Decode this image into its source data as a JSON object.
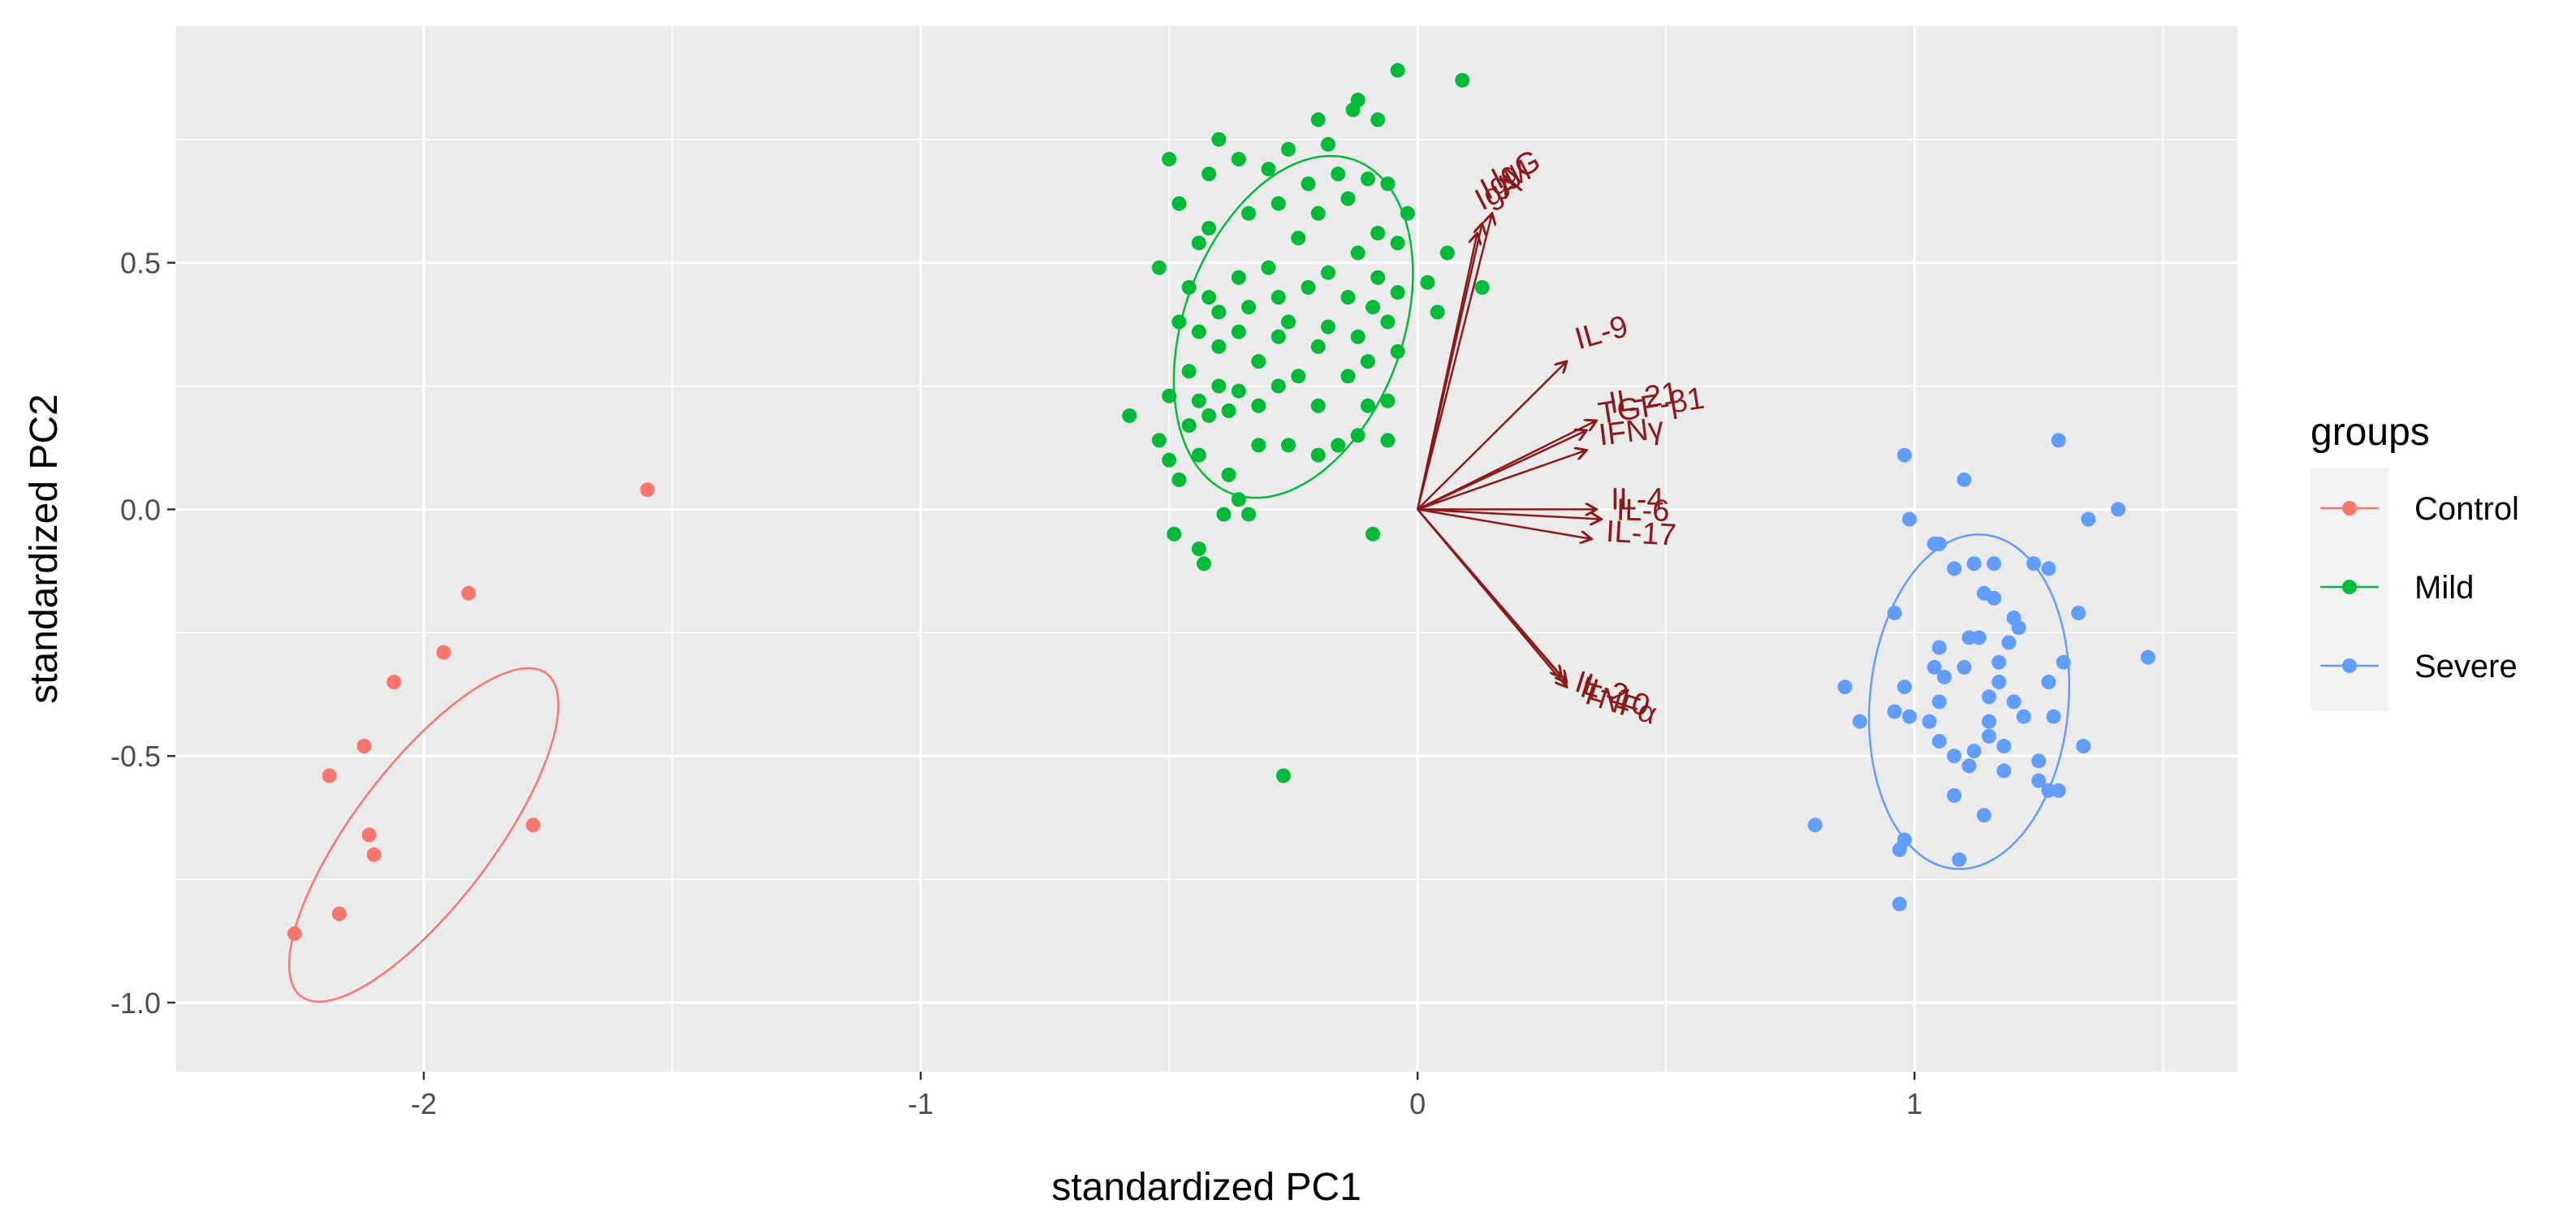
{
  "chart_data": {
    "type": "scatter",
    "xlabel": "standardized PC1",
    "ylabel": "standardized PC2",
    "xlim": [
      -2.5,
      1.65
    ],
    "ylim": [
      -1.14,
      0.98
    ],
    "x_ticks": [
      -2,
      -1,
      0,
      1
    ],
    "x_tick_labels": [
      "-2",
      "-1",
      "0",
      "1"
    ],
    "y_ticks": [
      -1.0,
      -0.5,
      0.0,
      0.5
    ],
    "y_tick_labels": [
      "-1.0",
      "-0.5",
      "0.0",
      "0.5"
    ],
    "grid": true,
    "legend": {
      "title": "groups",
      "position": "right",
      "entries": [
        "Control",
        "Mild",
        "Severe"
      ]
    },
    "colors": {
      "Control": "#F8766D",
      "Mild": "#00BA38",
      "Severe": "#619CFF",
      "arrows": "#8B1A1A",
      "panel": "#EBEBEB",
      "grid": "#FFFFFF"
    },
    "series": [
      {
        "name": "Control",
        "points": [
          [
            -1.55,
            0.04
          ],
          [
            -1.91,
            -0.17
          ],
          [
            -1.96,
            -0.29
          ],
          [
            -2.06,
            -0.35
          ],
          [
            -2.12,
            -0.48
          ],
          [
            -2.19,
            -0.54
          ],
          [
            -2.11,
            -0.66
          ],
          [
            -2.1,
            -0.7
          ],
          [
            -1.78,
            -0.64
          ],
          [
            -2.17,
            -0.82
          ],
          [
            -2.26,
            -0.86
          ]
        ],
        "ellipse": {
          "cx": -2.0,
          "cy": -0.66,
          "rx": 0.41,
          "ry": 0.14,
          "angle_deg": 53
        }
      },
      {
        "name": "Mild",
        "points": [
          [
            -0.04,
            0.89
          ],
          [
            0.09,
            0.87
          ],
          [
            -0.12,
            0.83
          ],
          [
            -0.08,
            0.79
          ],
          [
            -0.13,
            0.81
          ],
          [
            -0.2,
            0.79
          ],
          [
            -0.4,
            0.75
          ],
          [
            -0.18,
            0.74
          ],
          [
            -0.36,
            0.71
          ],
          [
            -0.26,
            0.73
          ],
          [
            -0.5,
            0.71
          ],
          [
            -0.3,
            0.69
          ],
          [
            -0.16,
            0.68
          ],
          [
            -0.42,
            0.68
          ],
          [
            -0.22,
            0.66
          ],
          [
            -0.1,
            0.67
          ],
          [
            -0.06,
            0.66
          ],
          [
            -0.48,
            0.62
          ],
          [
            -0.28,
            0.62
          ],
          [
            -0.14,
            0.63
          ],
          [
            -0.34,
            0.6
          ],
          [
            -0.2,
            0.6
          ],
          [
            -0.02,
            0.6
          ],
          [
            -0.42,
            0.57
          ],
          [
            -0.08,
            0.56
          ],
          [
            -0.24,
            0.55
          ],
          [
            -0.44,
            0.54
          ],
          [
            -0.04,
            0.54
          ],
          [
            -0.12,
            0.52
          ],
          [
            0.06,
            0.52
          ],
          [
            -0.52,
            0.49
          ],
          [
            -0.3,
            0.49
          ],
          [
            -0.18,
            0.48
          ],
          [
            -0.08,
            0.47
          ],
          [
            -0.36,
            0.47
          ],
          [
            0.02,
            0.46
          ],
          [
            -0.46,
            0.45
          ],
          [
            -0.22,
            0.45
          ],
          [
            -0.04,
            0.44
          ],
          [
            0.13,
            0.45
          ],
          [
            -0.42,
            0.43
          ],
          [
            -0.28,
            0.43
          ],
          [
            -0.14,
            0.43
          ],
          [
            -0.34,
            0.41
          ],
          [
            -0.09,
            0.41
          ],
          [
            -0.4,
            0.4
          ],
          [
            0.04,
            0.4
          ],
          [
            -0.48,
            0.38
          ],
          [
            -0.26,
            0.38
          ],
          [
            -0.18,
            0.37
          ],
          [
            -0.06,
            0.38
          ],
          [
            -0.36,
            0.36
          ],
          [
            -0.44,
            0.36
          ],
          [
            -0.28,
            0.35
          ],
          [
            -0.12,
            0.35
          ],
          [
            -0.4,
            0.33
          ],
          [
            -0.2,
            0.33
          ],
          [
            -0.04,
            0.32
          ],
          [
            -0.32,
            0.3
          ],
          [
            -0.1,
            0.3
          ],
          [
            -0.46,
            0.28
          ],
          [
            -0.24,
            0.27
          ],
          [
            -0.14,
            0.27
          ],
          [
            -0.4,
            0.25
          ],
          [
            -0.36,
            0.24
          ],
          [
            -0.28,
            0.25
          ],
          [
            -0.5,
            0.23
          ],
          [
            -0.06,
            0.22
          ],
          [
            -0.44,
            0.22
          ],
          [
            -0.32,
            0.21
          ],
          [
            -0.2,
            0.21
          ],
          [
            -0.1,
            0.21
          ],
          [
            -0.42,
            0.19
          ],
          [
            -0.38,
            0.2
          ],
          [
            -0.58,
            0.19
          ],
          [
            -0.46,
            0.17
          ],
          [
            -0.12,
            0.15
          ],
          [
            -0.16,
            0.13
          ],
          [
            -0.06,
            0.14
          ],
          [
            -0.44,
            0.11
          ],
          [
            -0.26,
            0.13
          ],
          [
            -0.32,
            0.13
          ],
          [
            -0.52,
            0.14
          ],
          [
            -0.2,
            0.11
          ],
          [
            -0.5,
            0.1
          ],
          [
            -0.38,
            0.07
          ],
          [
            -0.36,
            0.02
          ],
          [
            -0.34,
            -0.01
          ],
          [
            -0.39,
            -0.01
          ],
          [
            -0.48,
            0.06
          ],
          [
            -0.44,
            -0.08
          ],
          [
            -0.49,
            -0.05
          ],
          [
            -0.43,
            -0.11
          ],
          [
            -0.09,
            -0.05
          ],
          [
            -0.27,
            -0.54
          ]
        ],
        "ellipse": {
          "cx": -0.25,
          "cy": 0.37,
          "rx": 0.36,
          "ry": 0.22,
          "angle_deg": 70
        }
      },
      {
        "name": "Severe",
        "points": [
          [
            1.29,
            0.14
          ],
          [
            0.98,
            0.11
          ],
          [
            1.1,
            0.06
          ],
          [
            1.41,
            0.0
          ],
          [
            1.35,
            -0.02
          ],
          [
            0.99,
            -0.02
          ],
          [
            1.04,
            -0.07
          ],
          [
            1.05,
            -0.07
          ],
          [
            1.12,
            -0.11
          ],
          [
            1.16,
            -0.11
          ],
          [
            1.24,
            -0.11
          ],
          [
            1.27,
            -0.12
          ],
          [
            1.08,
            -0.12
          ],
          [
            1.14,
            -0.17
          ],
          [
            1.16,
            -0.18
          ],
          [
            0.96,
            -0.21
          ],
          [
            1.33,
            -0.21
          ],
          [
            1.2,
            -0.22
          ],
          [
            1.21,
            -0.24
          ],
          [
            1.13,
            -0.26
          ],
          [
            1.11,
            -0.26
          ],
          [
            1.19,
            -0.27
          ],
          [
            1.05,
            -0.28
          ],
          [
            1.47,
            -0.3
          ],
          [
            1.17,
            -0.31
          ],
          [
            1.04,
            -0.32
          ],
          [
            1.1,
            -0.32
          ],
          [
            1.3,
            -0.31
          ],
          [
            1.06,
            -0.34
          ],
          [
            1.17,
            -0.35
          ],
          [
            1.27,
            -0.35
          ],
          [
            0.98,
            -0.36
          ],
          [
            0.86,
            -0.36
          ],
          [
            1.15,
            -0.38
          ],
          [
            1.05,
            -0.39
          ],
          [
            1.2,
            -0.39
          ],
          [
            0.96,
            -0.41
          ],
          [
            0.99,
            -0.42
          ],
          [
            1.03,
            -0.43
          ],
          [
            1.22,
            -0.42
          ],
          [
            1.28,
            -0.42
          ],
          [
            0.89,
            -0.43
          ],
          [
            1.15,
            -0.43
          ],
          [
            1.15,
            -0.46
          ],
          [
            1.05,
            -0.47
          ],
          [
            1.18,
            -0.48
          ],
          [
            1.12,
            -0.49
          ],
          [
            1.34,
            -0.48
          ],
          [
            1.08,
            -0.5
          ],
          [
            1.25,
            -0.51
          ],
          [
            1.11,
            -0.52
          ],
          [
            1.18,
            -0.53
          ],
          [
            1.25,
            -0.55
          ],
          [
            1.29,
            -0.57
          ],
          [
            1.27,
            -0.57
          ],
          [
            1.08,
            -0.58
          ],
          [
            1.14,
            -0.62
          ],
          [
            0.8,
            -0.64
          ],
          [
            0.98,
            -0.67
          ],
          [
            0.97,
            -0.69
          ],
          [
            1.09,
            -0.71
          ],
          [
            0.97,
            -0.8
          ]
        ],
        "ellipse": {
          "cx": 1.11,
          "cy": -0.39,
          "rx": 0.34,
          "ry": 0.2,
          "angle_deg": 85
        }
      }
    ],
    "loadings": [
      {
        "label": "IgG",
        "x": 0.15,
        "y": 0.6
      },
      {
        "label": "IgM",
        "x": 0.13,
        "y": 0.58
      },
      {
        "label": "IgA",
        "x": 0.12,
        "y": 0.56
      },
      {
        "label": "IL-9",
        "x": 0.3,
        "y": 0.3
      },
      {
        "label": "TGF-β1",
        "x": 0.34,
        "y": 0.16
      },
      {
        "label": "IL-21",
        "x": 0.36,
        "y": 0.18
      },
      {
        "label": "IFNγ",
        "x": 0.34,
        "y": 0.12
      },
      {
        "label": "IL-4",
        "x": 0.36,
        "y": 0.0
      },
      {
        "label": "IL-6",
        "x": 0.37,
        "y": -0.02
      },
      {
        "label": "IL-17",
        "x": 0.35,
        "y": -0.06
      },
      {
        "label": "IL-10",
        "x": 0.3,
        "y": -0.35
      },
      {
        "label": "TNFα",
        "x": 0.3,
        "y": -0.36
      },
      {
        "label": "IL-2",
        "x": 0.29,
        "y": -0.34
      }
    ]
  }
}
